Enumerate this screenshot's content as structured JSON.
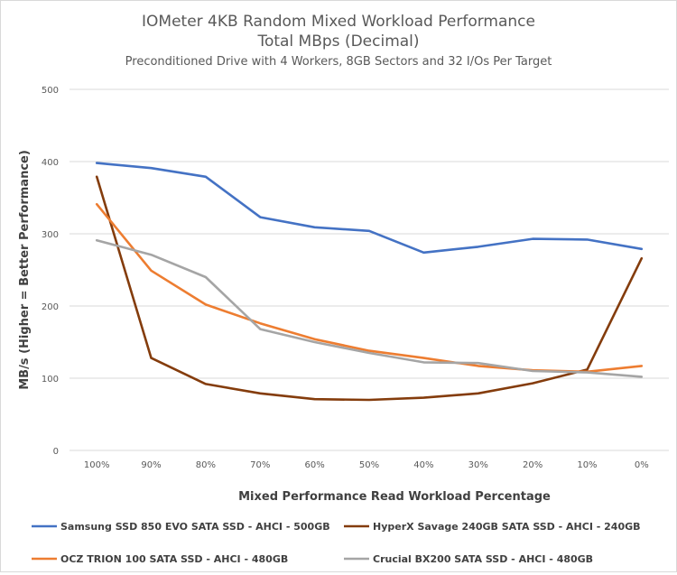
{
  "chart_data": {
    "type": "line",
    "title_lines": [
      "IOMeter 4KB Random Mixed Workload Performance",
      "Total MBps (Decimal)"
    ],
    "subtitle": "Preconditioned Drive with 4 Workers, 8GB Sectors and 32 I/Os Per Target",
    "xlabel": "Mixed Performance Read Workload Percentage",
    "ylabel": "MB/s (Higher = Better Performance)",
    "ylim": [
      0,
      500
    ],
    "yticks": [
      0,
      100,
      200,
      300,
      400,
      500
    ],
    "categories": [
      "100%",
      "90%",
      "80%",
      "70%",
      "60%",
      "50%",
      "40%",
      "30%",
      "20%",
      "10%",
      "0%"
    ],
    "grid": true,
    "legend_position": "bottom",
    "series": [
      {
        "name": "Samsung SSD 850 EVO SATA SSD - AHCI - 500GB",
        "color": "#4472c4",
        "values": [
          398,
          391,
          379,
          323,
          309,
          304,
          274,
          282,
          293,
          292,
          279
        ]
      },
      {
        "name": "HyperX Savage 240GB SATA SSD - AHCI - 240GB",
        "color": "#843c0c",
        "values": [
          379,
          128,
          92,
          79,
          71,
          70,
          73,
          79,
          93,
          112,
          266
        ]
      },
      {
        "name": "OCZ TRION 100 SATA SSD - AHCI - 480GB",
        "color": "#ed7d31",
        "values": [
          341,
          249,
          202,
          176,
          154,
          138,
          128,
          117,
          111,
          109,
          117
        ]
      },
      {
        "name": "Crucial BX200 SATA SSD - AHCI - 480GB",
        "color": "#a5a5a5",
        "values": [
          291,
          271,
          240,
          168,
          150,
          135,
          122,
          121,
          110,
          108,
          102
        ]
      }
    ]
  }
}
